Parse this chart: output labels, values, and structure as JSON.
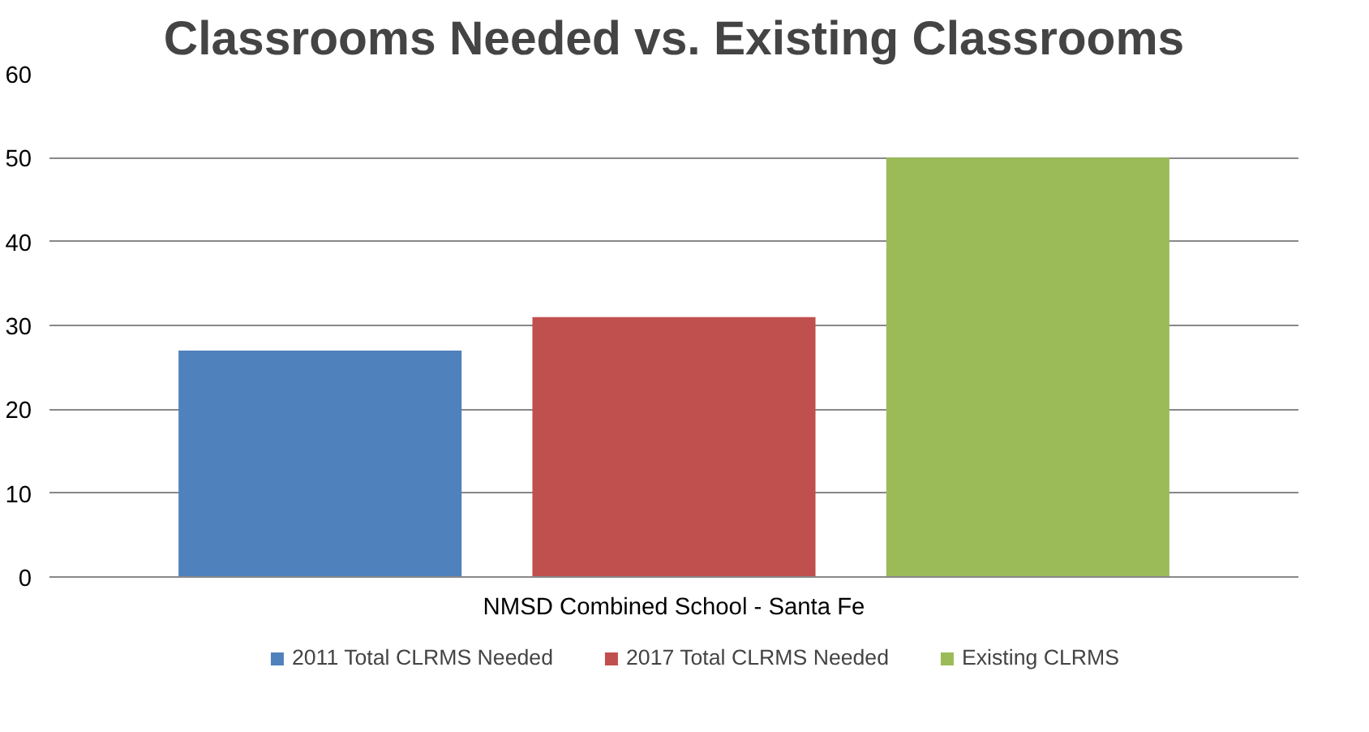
{
  "chart_data": {
    "type": "bar",
    "title": "Classrooms Needed vs. Existing Classrooms",
    "categories": [
      "NMSD Combined School - Santa Fe"
    ],
    "series": [
      {
        "name": "2011 Total CLRMS Needed",
        "color": "#4f81bd",
        "values": [
          27
        ]
      },
      {
        "name": "2017 Total CLRMS Needed",
        "color": "#c0504d",
        "values": [
          31
        ]
      },
      {
        "name": "Existing CLRMS",
        "color": "#9bbb59",
        "values": [
          50
        ]
      }
    ],
    "ylim": [
      0,
      60
    ],
    "yticks": [
      0,
      10,
      20,
      30,
      40,
      50,
      60
    ],
    "grid": "y",
    "legend": "bottom"
  }
}
